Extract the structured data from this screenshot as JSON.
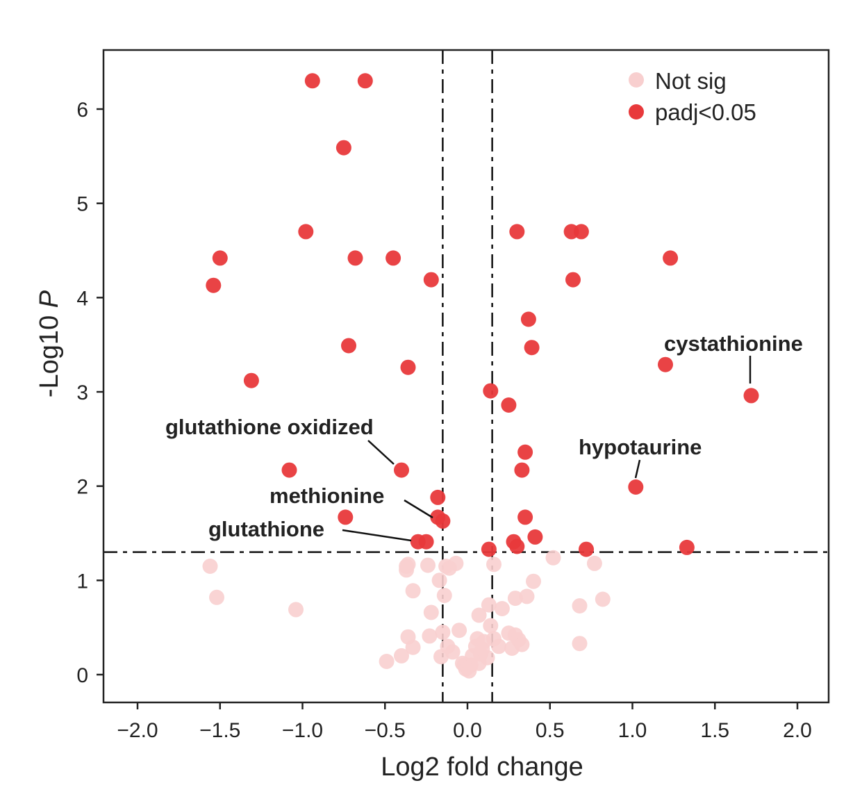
{
  "chart_data": {
    "type": "scatter",
    "xlabel": "Log2 fold change",
    "ylabel_prefix": "-Log10 ",
    "ylabel_italic": "P",
    "xlim": [
      -2.2,
      2.2
    ],
    "ylim": [
      -0.3,
      6.6
    ],
    "xticks": [
      -2.0,
      -1.5,
      -1.0,
      -0.5,
      0.0,
      0.5,
      1.0,
      1.5,
      2.0
    ],
    "xtick_labels": [
      "−2.0",
      "−1.5",
      "−1.0",
      "−0.5",
      "0.0",
      "0.5",
      "1.0",
      "1.5",
      "2.0"
    ],
    "yticks": [
      0,
      1,
      2,
      3,
      4,
      5,
      6
    ],
    "ytick_labels": [
      "0",
      "1",
      "2",
      "3",
      "4",
      "5",
      "6"
    ],
    "grid": false,
    "legend_position": "top-right",
    "thresholds": {
      "x": [
        -0.15,
        0.15
      ],
      "y": 1.3
    },
    "colors": {
      "not_sig": "#f8cfcf",
      "sig": "#e8393b"
    },
    "series": [
      {
        "name": "Not sig",
        "color": "#f8cfcf",
        "points": [
          [
            -1.56,
            1.15
          ],
          [
            -1.52,
            0.82
          ],
          [
            -1.04,
            0.69
          ],
          [
            -0.37,
            1.15
          ],
          [
            -0.37,
            1.11
          ],
          [
            -0.36,
            1.17
          ],
          [
            -0.33,
            0.89
          ],
          [
            -0.24,
            1.16
          ],
          [
            -0.22,
            0.66
          ],
          [
            -0.17,
            1.0
          ],
          [
            -0.14,
            0.84
          ],
          [
            -0.13,
            1.15
          ],
          [
            -0.11,
            1.13
          ],
          [
            -0.07,
            1.18
          ],
          [
            -0.49,
            0.14
          ],
          [
            -0.4,
            0.2
          ],
          [
            -0.36,
            0.4
          ],
          [
            -0.33,
            0.29
          ],
          [
            -0.23,
            0.41
          ],
          [
            -0.16,
            0.19
          ],
          [
            -0.15,
            0.45
          ],
          [
            -0.12,
            0.3
          ],
          [
            -0.09,
            0.24
          ],
          [
            -0.05,
            0.47
          ],
          [
            -0.03,
            0.12
          ],
          [
            -0.02,
            0.1
          ],
          [
            -0.01,
            0.06
          ],
          [
            0.0,
            0.08
          ],
          [
            0.01,
            0.04
          ],
          [
            0.02,
            0.1
          ],
          [
            0.03,
            0.2
          ],
          [
            0.05,
            0.3
          ],
          [
            0.06,
            0.38
          ],
          [
            0.07,
            0.12
          ],
          [
            0.08,
            0.22
          ],
          [
            0.09,
            0.27
          ],
          [
            0.1,
            0.35
          ],
          [
            0.12,
            0.18
          ],
          [
            0.13,
            0.74
          ],
          [
            0.14,
            0.52
          ],
          [
            0.16,
            0.38
          ],
          [
            0.19,
            0.3
          ],
          [
            0.21,
            0.7
          ],
          [
            0.25,
            0.44
          ],
          [
            0.27,
            0.28
          ],
          [
            0.29,
            0.42
          ],
          [
            0.31,
            0.37
          ],
          [
            0.33,
            0.32
          ],
          [
            0.07,
            0.63
          ],
          [
            0.29,
            0.81
          ],
          [
            0.36,
            0.83
          ],
          [
            0.4,
            0.99
          ],
          [
            0.16,
            1.17
          ],
          [
            0.52,
            1.24
          ],
          [
            0.68,
            0.73
          ],
          [
            0.68,
            0.33
          ],
          [
            0.77,
            1.18
          ],
          [
            0.82,
            0.8
          ]
        ]
      },
      {
        "name": "padj<0.05",
        "color": "#e8393b",
        "points": [
          [
            -0.94,
            6.3
          ],
          [
            -0.62,
            6.3
          ],
          [
            -0.75,
            5.59
          ],
          [
            -0.98,
            4.7
          ],
          [
            -1.5,
            4.42
          ],
          [
            -1.54,
            4.13
          ],
          [
            -0.68,
            4.42
          ],
          [
            -0.45,
            4.42
          ],
          [
            -0.22,
            4.19
          ],
          [
            -0.72,
            3.49
          ],
          [
            -0.36,
            3.26
          ],
          [
            -1.31,
            3.12
          ],
          [
            -1.08,
            2.17
          ],
          [
            -0.4,
            2.17
          ],
          [
            -0.18,
            1.88
          ],
          [
            -0.18,
            1.67
          ],
          [
            -0.15,
            1.63
          ],
          [
            -0.74,
            1.67
          ],
          [
            -0.3,
            1.41
          ],
          [
            -0.25,
            1.41
          ],
          [
            0.3,
            4.7
          ],
          [
            0.63,
            4.7
          ],
          [
            0.69,
            4.7
          ],
          [
            1.23,
            4.42
          ],
          [
            0.64,
            4.19
          ],
          [
            0.37,
            3.77
          ],
          [
            0.39,
            3.47
          ],
          [
            1.2,
            3.29
          ],
          [
            1.72,
            2.96
          ],
          [
            0.14,
            3.01
          ],
          [
            0.25,
            2.86
          ],
          [
            0.35,
            2.36
          ],
          [
            0.33,
            2.17
          ],
          [
            1.02,
            1.99
          ],
          [
            0.35,
            1.67
          ],
          [
            0.41,
            1.46
          ],
          [
            0.28,
            1.41
          ],
          [
            0.3,
            1.36
          ],
          [
            0.13,
            1.33
          ],
          [
            0.72,
            1.33
          ],
          [
            1.33,
            1.35
          ]
        ]
      }
    ],
    "annotations": [
      {
        "text": "cystathionine",
        "point": [
          1.72,
          2.96
        ]
      },
      {
        "text": "hypotaurine",
        "point": [
          1.02,
          1.99
        ]
      },
      {
        "text": "glutathione oxidized",
        "point": [
          -0.4,
          2.17
        ]
      },
      {
        "text": "methionine",
        "point": [
          -0.18,
          1.67
        ]
      },
      {
        "text": "glutathione",
        "point": [
          -0.3,
          1.41
        ]
      }
    ]
  }
}
